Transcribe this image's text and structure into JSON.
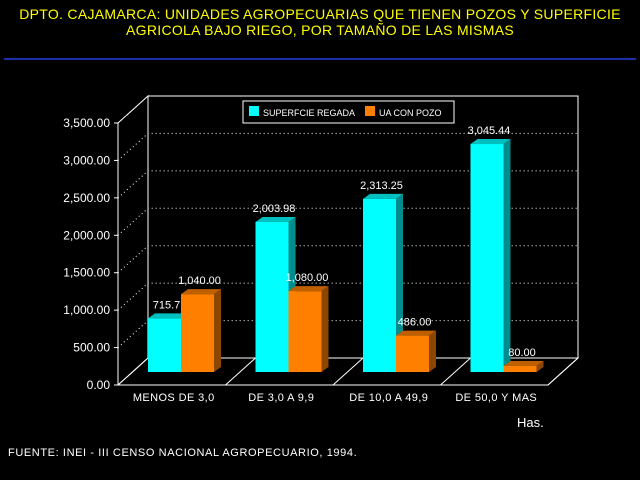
{
  "title_line1": "DPTO. CAJAMARCA: UNIDADES AGROPECUARIAS QUE TIENEN POZOS Y SUPERFICIE",
  "title_line2": "AGRICOLA BAJO RIEGO, POR TAMAÑO DE LAS MISMAS",
  "source": "FUENTE: INEI - III CENSO NACIONAL AGROPECUARIO, 1994.",
  "units_label": "Has.",
  "colors": {
    "title": "#ffff00",
    "series_1": "#00ffff",
    "series_2": "#ff8000",
    "background": "#000000"
  },
  "chart_data": {
    "type": "bar",
    "categories": [
      "MENOS DE 3,0",
      "DE 3,0  A 9,9",
      "DE 10,0  A 49,9",
      "DE 50,0  Y MAS"
    ],
    "series": [
      {
        "name": "SUPERFCIE REGADA",
        "values": [
          715.7,
          2003.98,
          2313.25,
          3045.44
        ],
        "labels": [
          "715.7",
          "2,003.98",
          "2,313.25",
          "3,045.44"
        ]
      },
      {
        "name": "UA CON POZO",
        "values": [
          1040,
          1080,
          486,
          80
        ],
        "labels": [
          "1,040.00",
          "1,080.00",
          "486.00",
          "80.00"
        ]
      }
    ],
    "ylim": [
      0,
      3500
    ],
    "yticks": [
      "0.00",
      "500.00",
      "1,000.00",
      "1,500.00",
      "2,000.00",
      "2,500.00",
      "3,000.00",
      "3,500.00"
    ],
    "grid": true,
    "legend_position": "top-center",
    "style": "3d"
  }
}
